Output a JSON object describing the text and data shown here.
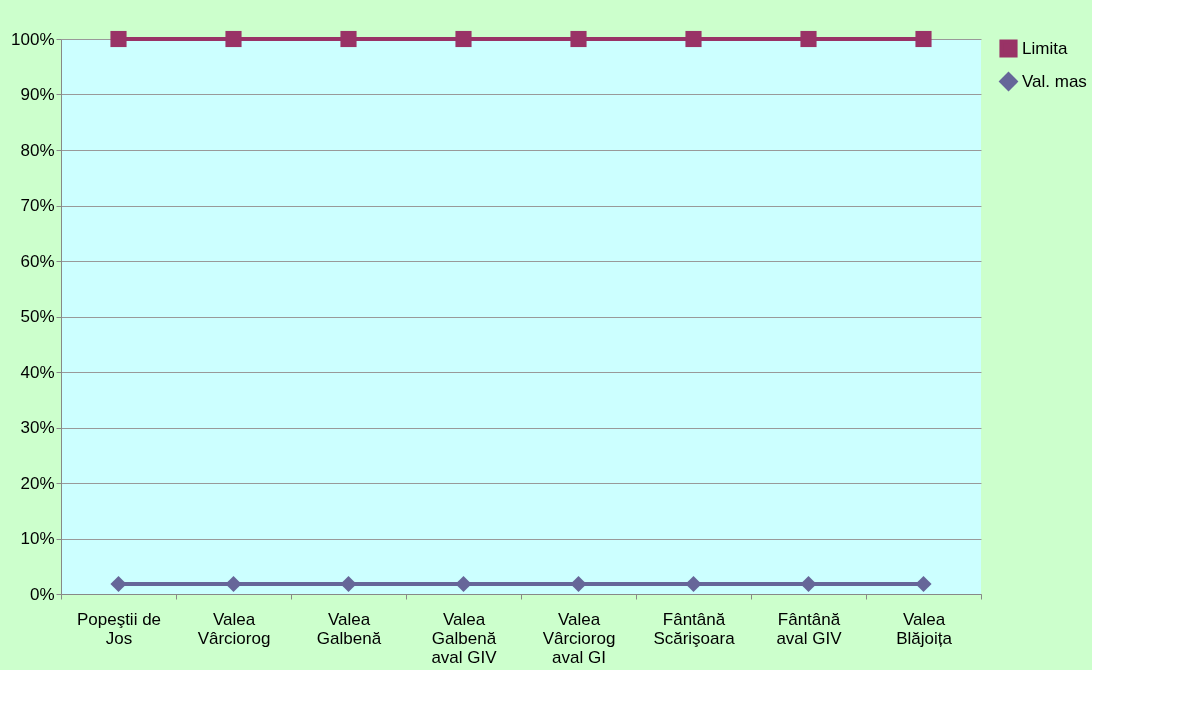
{
  "chart_data": {
    "type": "line",
    "categories": [
      "Popeştii de Jos",
      "Valea Vârciorog",
      "Valea Galbenă",
      "Valea Galbenă aval GIV",
      "Valea Vârciorog aval GI",
      "Fântână Scărişoara",
      "Fântână aval GIV",
      "Valea Blăjoița"
    ],
    "series": [
      {
        "name": "Limita",
        "color": "#993366",
        "marker": "square",
        "values": [
          100,
          100,
          100,
          100,
          100,
          100,
          100,
          100
        ]
      },
      {
        "name": "Val. mas",
        "color": "#666699",
        "marker": "diamond",
        "values": [
          1.8,
          1.8,
          1.8,
          1.8,
          1.8,
          1.8,
          1.8,
          1.8
        ]
      }
    ],
    "ylim": [
      0,
      100
    ],
    "yticks": [
      {
        "value": 0,
        "label": "0%"
      },
      {
        "value": 10,
        "label": "10%"
      },
      {
        "value": 20,
        "label": "20%"
      },
      {
        "value": 30,
        "label": "30%"
      },
      {
        "value": 40,
        "label": "40%"
      },
      {
        "value": 50,
        "label": "50%"
      },
      {
        "value": 60,
        "label": "60%"
      },
      {
        "value": 70,
        "label": "70%"
      },
      {
        "value": 80,
        "label": "80%"
      },
      {
        "value": 90,
        "label": "90%"
      },
      {
        "value": 100,
        "label": "100%"
      }
    ],
    "grid": "y",
    "legend": "right",
    "line_style": "solid"
  }
}
